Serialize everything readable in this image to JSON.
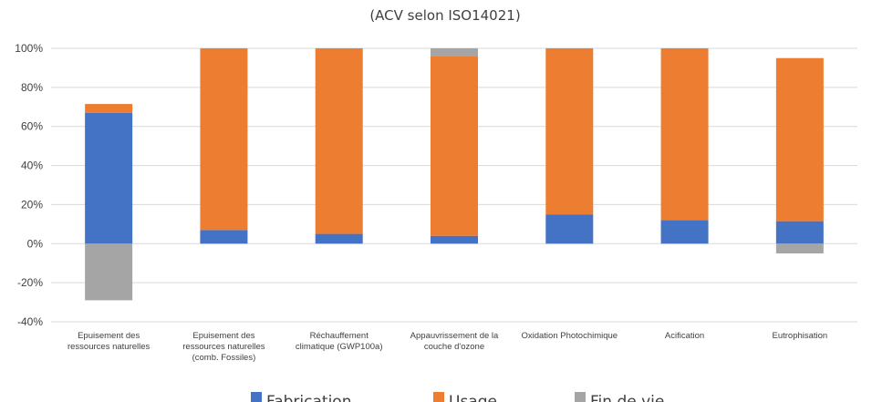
{
  "chart_data": {
    "type": "bar",
    "stacked": true,
    "title": "(ACV selon ISO14021)",
    "xlabel": "",
    "ylabel": "",
    "ylim": [
      -40,
      100
    ],
    "yticks": [
      "100%",
      "80%",
      "60%",
      "40%",
      "20%",
      "0%",
      "-20%",
      "-40%"
    ],
    "ytick_values": [
      100,
      80,
      60,
      40,
      20,
      0,
      -20,
      -40
    ],
    "grid": true,
    "legend_position": "bottom",
    "categories": [
      [
        "Epuisement des",
        "ressources naturelles"
      ],
      [
        "Epuisement des",
        "ressources naturelles",
        "(comb. Fossiles)"
      ],
      [
        "Réchauffement",
        "climatique (GWP100a)"
      ],
      [
        "Appauvrissement de la",
        "couche d'ozone"
      ],
      [
        "Oxidation Photochimique"
      ],
      [
        "Acification"
      ],
      [
        "Eutrophisation"
      ]
    ],
    "series": [
      {
        "name": "Fabrication",
        "color": "#4472c4",
        "values": [
          67,
          7,
          5,
          4,
          15,
          12,
          11.5
        ]
      },
      {
        "name": "Usage",
        "color": "#ed7d31",
        "values": [
          4.5,
          93,
          95,
          92,
          85,
          88,
          83.5
        ]
      },
      {
        "name": "Fin de vie",
        "color": "#a5a5a5",
        "values": [
          -29,
          0,
          0,
          4,
          0,
          0,
          -5
        ]
      }
    ]
  }
}
